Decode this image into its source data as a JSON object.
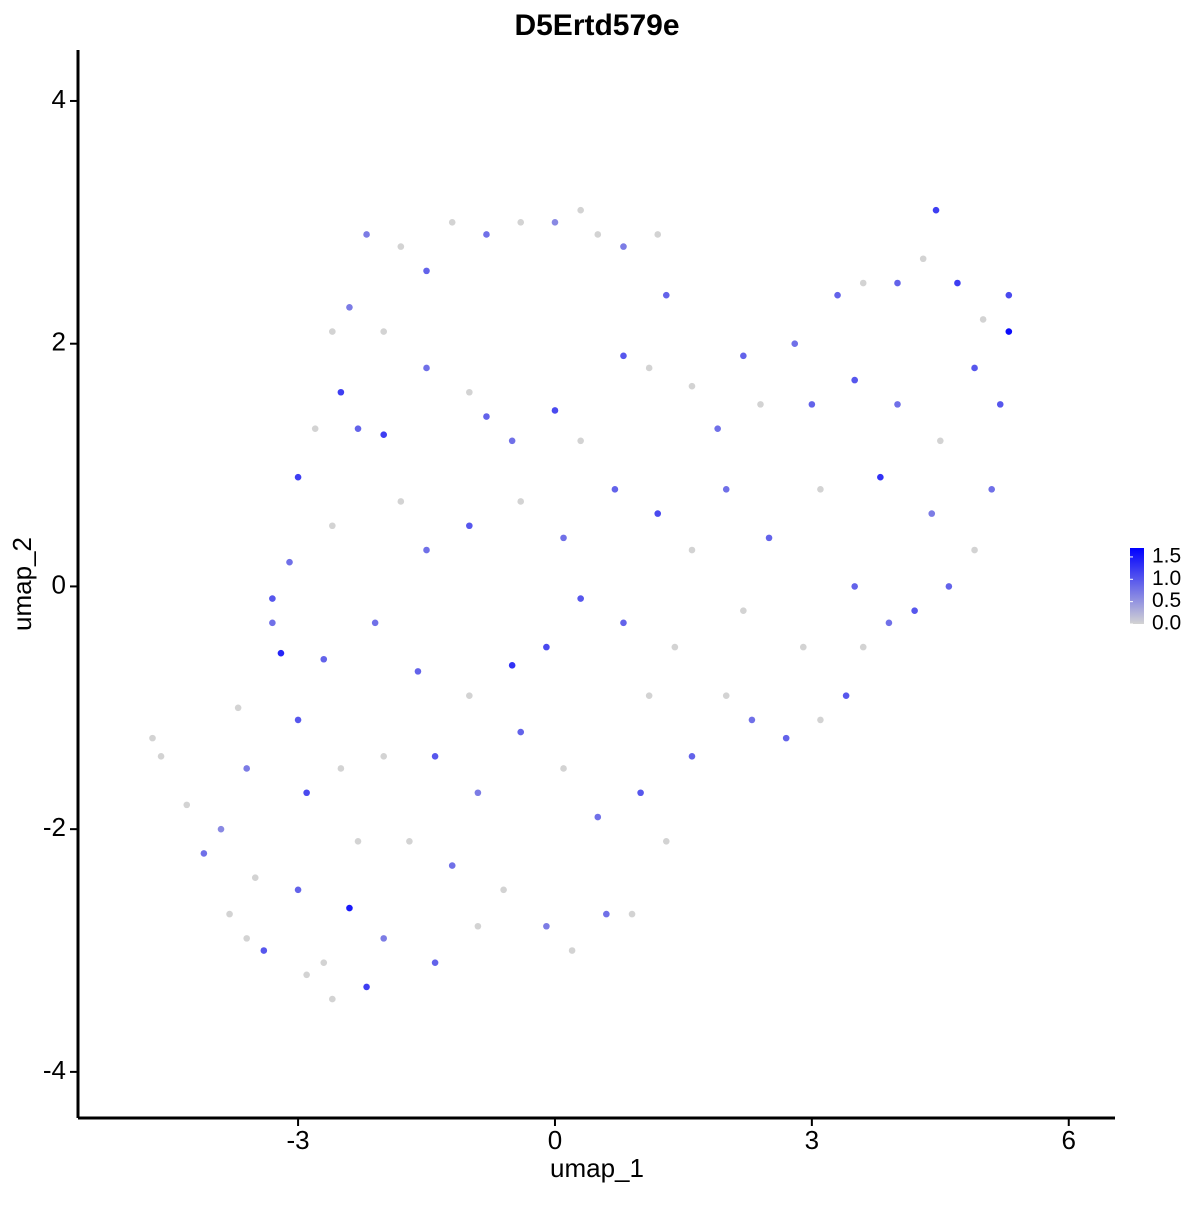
{
  "chart_data": {
    "type": "scatter",
    "title": "D5Ertd579e",
    "x_label": "umap_1",
    "y_label": "umap_2",
    "xlim": [
      -5.57,
      6.54
    ],
    "ylim": [
      -4.38,
      4.42
    ],
    "xticks": [
      -3,
      0,
      3,
      6
    ],
    "yticks": [
      -4,
      -2,
      0,
      2,
      4
    ],
    "color_low": "#d3d3d3",
    "color_high": "#0000ff",
    "clim": [
      0,
      1.7
    ],
    "colorbar_ticks": [
      {
        "value": 0,
        "label": "0.0"
      },
      {
        "value": 0.5,
        "label": "0.5"
      },
      {
        "value": 1,
        "label": "1.0"
      },
      {
        "value": 1.5,
        "label": "1.5"
      }
    ],
    "x": [
      -4.7,
      -4.6,
      -4.3,
      -4.1,
      -3.9,
      -3.8,
      -3.6,
      -3.4,
      -3.6,
      -3.5,
      -3.3,
      -3.2,
      -3.0,
      -2.9,
      -3.0,
      -2.7,
      -2.9,
      -2.6,
      -2.4,
      -2.2,
      -2.0,
      -2.3,
      -2.5,
      -2.7,
      -3.1,
      -3.3,
      -3.0,
      -2.8,
      -2.5,
      -2.3,
      -2.0,
      -2.0,
      -2.2,
      -1.8,
      -1.5,
      -1.2,
      -0.8,
      -0.4,
      0,
      0.3,
      0.5,
      0.8,
      1.2,
      -2.4,
      -2.6,
      -1.5,
      -1.0,
      -0.8,
      -0.5,
      0,
      0.3,
      0.8,
      1.1,
      -1.8,
      -1.5,
      -1.0,
      -0.4,
      0.1,
      0.7,
      1.2,
      -2.1,
      -1.6,
      -1.0,
      -0.5,
      -0.1,
      0.3,
      0.8,
      1.1,
      -1.4,
      -0.9,
      -0.4,
      0.1,
      0.5,
      1.0,
      -1.7,
      -1.2,
      -0.6,
      -0.1,
      0.2,
      0.6,
      0.9,
      -1.4,
      -0.9,
      1.3,
      1.6,
      2.0,
      2.3,
      2.7,
      3.1,
      3.4,
      3.6,
      3.9,
      4.2,
      4.6,
      4.9,
      5.1,
      5.2,
      5.3,
      5.3,
      5.0,
      4.7,
      4.45,
      4.3,
      4.0,
      3.6,
      3.3,
      2.8,
      2.2,
      1.6,
      1.9,
      2.4,
      3.0,
      3.5,
      4.0,
      4.5,
      4.9,
      3.8,
      3.1,
      2.5,
      2.0,
      1.6,
      2.2,
      3.5,
      4.4,
      1.4,
      2.9,
      -2.6,
      -2.0,
      -3.7,
      1.3
    ],
    "y": [
      -1.25,
      -1.4,
      -1.8,
      -2.2,
      -2.0,
      -2.7,
      -2.9,
      -3.0,
      -1.5,
      -2.4,
      -0.3,
      -0.55,
      -1.1,
      -1.7,
      -2.5,
      -3.1,
      -3.2,
      -3.4,
      -2.65,
      -3.3,
      -2.9,
      -2.1,
      -1.5,
      -0.6,
      0.2,
      -0.1,
      0.9,
      1.3,
      1.6,
      1.3,
      1.25,
      2.1,
      2.9,
      2.8,
      2.6,
      3.0,
      2.9,
      3.0,
      3.0,
      3.1,
      2.9,
      2.8,
      2.9,
      2.3,
      2.1,
      1.8,
      1.6,
      1.4,
      1.2,
      1.45,
      1.2,
      1.9,
      1.8,
      0.7,
      0.3,
      0.5,
      0.7,
      0.4,
      0.8,
      0.6,
      -0.3,
      -0.7,
      -0.9,
      -0.65,
      -0.5,
      -0.1,
      -0.3,
      -0.9,
      -1.4,
      -1.7,
      -1.2,
      -1.5,
      -1.9,
      -1.7,
      -2.1,
      -2.3,
      -2.5,
      -2.8,
      -3.0,
      -2.7,
      -2.7,
      -3.1,
      -2.8,
      -2.1,
      -1.4,
      -0.9,
      -1.1,
      -1.25,
      -1.1,
      -0.9,
      -0.5,
      -0.3,
      -0.2,
      0.0,
      0.3,
      0.8,
      1.5,
      2.1,
      2.4,
      2.2,
      2.5,
      3.1,
      2.7,
      2.5,
      2.5,
      2.4,
      2.0,
      1.9,
      1.65,
      1.3,
      1.5,
      1.5,
      1.7,
      1.5,
      1.2,
      1.8,
      0.9,
      0.8,
      0.4,
      0.8,
      0.3,
      -0.2,
      0.0,
      0.6,
      -0.5,
      -0.5,
      0.5,
      -1.4,
      -1.0,
      2.4
    ],
    "values": [
      0,
      0,
      0,
      0.8,
      0.6,
      0,
      0,
      1.0,
      0.7,
      0,
      0.8,
      1.4,
      1.0,
      1.1,
      0.9,
      0,
      0,
      0,
      1.5,
      1.2,
      0.7,
      0,
      0,
      0.9,
      0.8,
      1.0,
      1.2,
      0,
      1.2,
      0.9,
      1.2,
      0,
      0.7,
      0,
      0.9,
      0,
      0.8,
      0,
      0.6,
      0,
      0,
      0.7,
      0,
      0.7,
      0,
      0.8,
      0,
      0.9,
      0.8,
      1.1,
      0,
      1.0,
      0,
      0,
      0.8,
      1.0,
      0,
      0.8,
      0.9,
      1.1,
      0.8,
      0.9,
      0,
      1.3,
      1.1,
      1.0,
      0.9,
      0,
      1.0,
      0.7,
      0.9,
      0,
      0.8,
      1.0,
      0,
      0.8,
      0,
      0.7,
      0,
      0.8,
      0,
      0.9,
      0,
      0,
      0.9,
      0,
      0.8,
      0.9,
      0,
      1.0,
      0,
      0.8,
      1.0,
      0.9,
      0,
      0.8,
      1.0,
      1.6,
      1.1,
      0,
      1.2,
      1.2,
      0,
      0.9,
      0,
      0.9,
      0.8,
      0.9,
      0,
      0.8,
      0,
      0.9,
      1.0,
      0.8,
      0,
      1.0,
      1.3,
      0,
      0.9,
      0.8,
      0,
      0,
      0.9,
      0.7,
      0,
      0,
      0,
      0,
      0,
      0.9
    ]
  }
}
